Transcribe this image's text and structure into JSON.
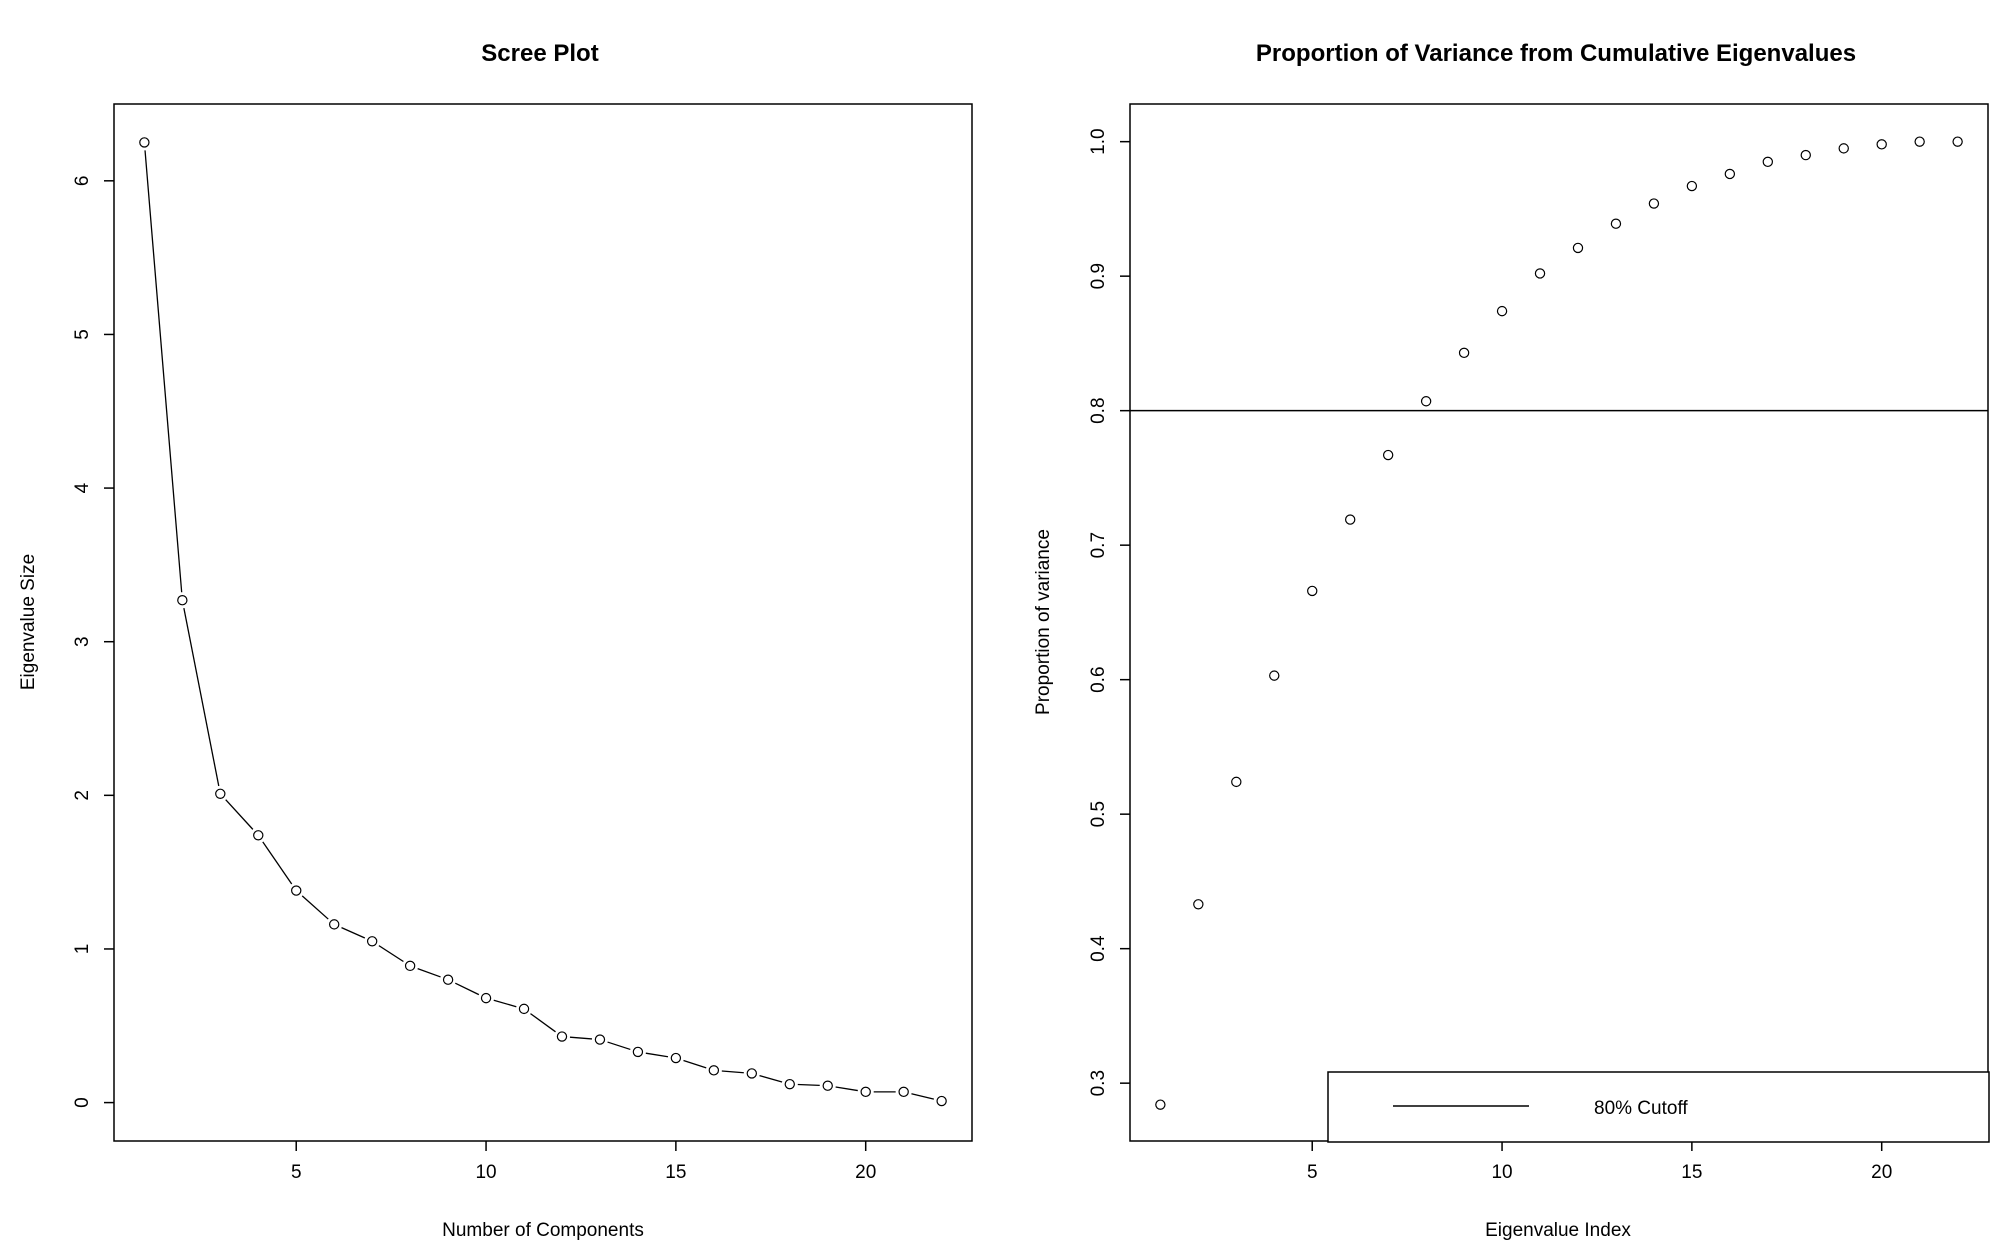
{
  "chart_data": [
    {
      "type": "line",
      "title": "Scree Plot",
      "xlabel": "Number of Components",
      "ylabel": "Eigenvalue Size",
      "xlim": [
        0.2,
        22.8
      ],
      "ylim": [
        -0.25,
        6.5
      ],
      "xticks": [
        5,
        10,
        15,
        20
      ],
      "yticks": [
        0,
        1,
        2,
        3,
        4,
        5,
        6
      ],
      "grid": false,
      "markers": "open-circle",
      "series": [
        {
          "x": [
            1,
            2,
            3,
            4,
            5,
            6,
            7,
            8,
            9,
            10,
            11,
            12,
            13,
            14,
            15,
            16,
            17,
            18,
            19,
            20,
            21,
            22
          ],
          "values": [
            6.25,
            3.27,
            2.01,
            1.74,
            1.38,
            1.16,
            1.05,
            0.89,
            0.8,
            0.68,
            0.61,
            0.43,
            0.41,
            0.33,
            0.29,
            0.21,
            0.19,
            0.12,
            0.11,
            0.07,
            0.07,
            0.01
          ]
        }
      ]
    },
    {
      "type": "scatter",
      "title": "Proportion of Variance from Cumulative Eigenvalues",
      "xlabel": "Eigenvalue Index",
      "ylabel": "Proportion of variance",
      "xlim": [
        0.2,
        22.8
      ],
      "ylim": [
        0.257,
        1.028
      ],
      "xticks": [
        5,
        10,
        15,
        20
      ],
      "yticks": [
        0.3,
        0.4,
        0.5,
        0.6,
        0.7,
        0.8,
        0.9,
        1.0
      ],
      "ytick_labels": [
        "0.3",
        "0.4",
        "0.5",
        "0.6",
        "0.7",
        "0.8",
        "0.9",
        "1.0"
      ],
      "grid": false,
      "markers": "open-circle",
      "hline": 0.8,
      "legend": {
        "placement": "bottom-right",
        "entries": [
          {
            "label": "80% Cutoff",
            "style": "line"
          }
        ]
      },
      "series": [
        {
          "x": [
            1,
            2,
            3,
            4,
            5,
            6,
            7,
            8,
            9,
            10,
            11,
            12,
            13,
            14,
            15,
            16,
            17,
            18,
            19,
            20,
            21,
            22
          ],
          "values": [
            0.284,
            0.433,
            0.524,
            0.603,
            0.666,
            0.719,
            0.767,
            0.807,
            0.843,
            0.874,
            0.902,
            0.921,
            0.939,
            0.954,
            0.967,
            0.976,
            0.985,
            0.99,
            0.995,
            0.998,
            1.0,
            1.0
          ]
        }
      ]
    }
  ]
}
